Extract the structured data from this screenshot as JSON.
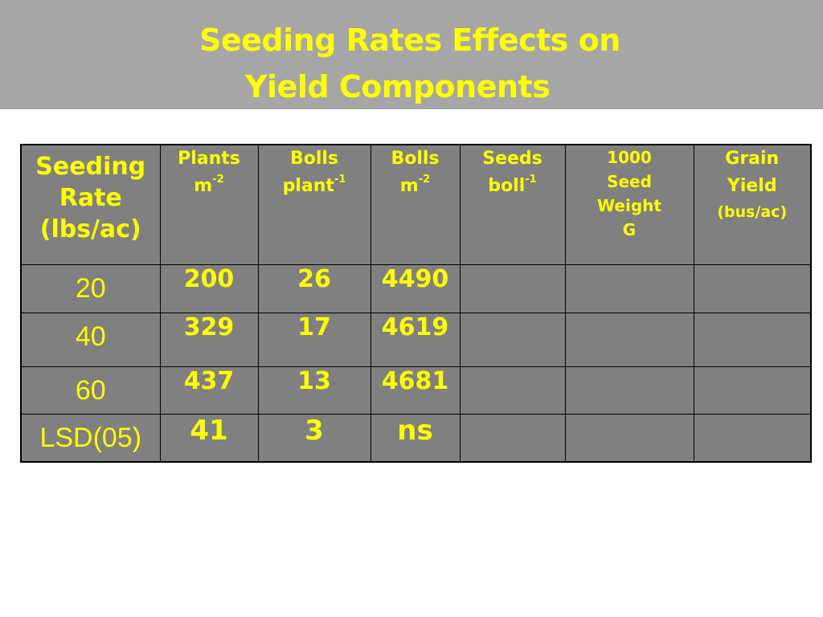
{
  "title": {
    "line1": "Seeding Rates Effects on",
    "line2": "Yield Components"
  },
  "table": {
    "headers": {
      "seeding_rate": [
        "Seeding",
        "Rate",
        "(lbs/ac)"
      ],
      "plants": {
        "main": "Plants",
        "unit": "m",
        "exp": "-2"
      },
      "bolls_plant": {
        "main": "Bolls",
        "unit": "plant",
        "exp": "-1"
      },
      "bolls_m": {
        "main": "Bolls",
        "unit": "m",
        "exp": "-2"
      },
      "seeds_boll": {
        "main": "Seeds",
        "unit": "boll",
        "exp": "-1"
      },
      "seed_weight": [
        "1000",
        "Seed",
        "Weight",
        "G"
      ],
      "grain_yield": [
        "Grain",
        "Yield",
        "(bus/ac)"
      ]
    },
    "rows": [
      {
        "rate": "20",
        "plants": "200",
        "bolls_plant": "26",
        "bolls_m": "4490",
        "seeds_boll": "",
        "seed_weight": "",
        "grain_yield": ""
      },
      {
        "rate": "40",
        "plants": "329",
        "bolls_plant": "17",
        "bolls_m": "4619",
        "seeds_boll": "",
        "seed_weight": "",
        "grain_yield": ""
      },
      {
        "rate": "60",
        "plants": "437",
        "bolls_plant": "13",
        "bolls_m": "4681",
        "seeds_boll": "",
        "seed_weight": "",
        "grain_yield": ""
      },
      {
        "rate": "LSD(05)",
        "plants": "41",
        "bolls_plant": "3",
        "bolls_m": "ns",
        "seeds_boll": "",
        "seed_weight": "",
        "grain_yield": ""
      }
    ]
  },
  "colors": {
    "title_band": "#a6a6a6",
    "text": "#ffff00",
    "table_fill": "#808080",
    "border": "#000000"
  }
}
